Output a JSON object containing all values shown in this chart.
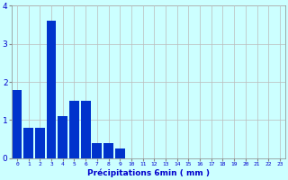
{
  "categories": [
    0,
    1,
    2,
    3,
    4,
    5,
    6,
    7,
    8,
    9,
    10,
    11,
    12,
    13,
    14,
    15,
    16,
    17,
    18,
    19,
    20,
    21,
    22,
    23
  ],
  "values": [
    1.8,
    0.8,
    0.8,
    3.6,
    1.1,
    1.5,
    1.5,
    0.4,
    0.4,
    0.25,
    0,
    0,
    0,
    0,
    0,
    0,
    0,
    0,
    0,
    0,
    0,
    0,
    0,
    0
  ],
  "bar_color": "#0033cc",
  "background_color": "#ccffff",
  "grid_color": "#bbbbbb",
  "xlabel": "Précipitations 6min ( mm )",
  "xlabel_color": "#0000cc",
  "tick_color": "#0000cc",
  "ylim": [
    0,
    4
  ],
  "yticks": [
    0,
    1,
    2,
    3,
    4
  ],
  "xlim": [
    -0.5,
    23.5
  ],
  "figsize": [
    3.2,
    2.0
  ],
  "dpi": 100
}
